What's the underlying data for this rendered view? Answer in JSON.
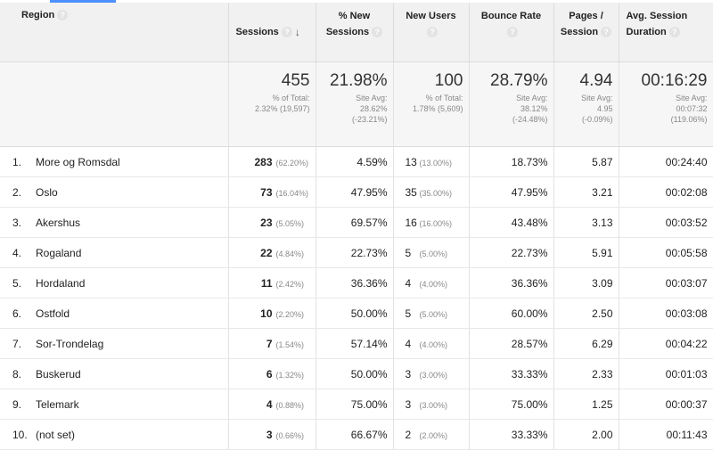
{
  "columns": {
    "region": "Region",
    "sessions": "Sessions",
    "pct_new_sessions": "% New Sessions",
    "new_users": "New Users",
    "bounce_rate": "Bounce Rate",
    "pages_session": "Pages / Session",
    "avg_duration": "Avg. Session Duration"
  },
  "help_symbol": "?",
  "sort_symbol": "↓",
  "totals": {
    "sessions": {
      "value": "455",
      "line1": "% of Total:",
      "line2": "2.32% (19,597)"
    },
    "pct_new_sessions": {
      "value": "21.98%",
      "line1": "Site Avg:",
      "line2": "28.62%",
      "line3": "(-23.21%)"
    },
    "new_users": {
      "value": "100",
      "line1": "% of Total:",
      "line2": "1.78% (5,609)"
    },
    "bounce_rate": {
      "value": "28.79%",
      "line1": "Site Avg:",
      "line2": "38.12%",
      "line3": "(-24.48%)"
    },
    "pages_session": {
      "value": "4.94",
      "line1": "Site Avg:",
      "line2": "4.95",
      "line3": "(-0.09%)"
    },
    "avg_duration": {
      "value": "00:16:29",
      "line1": "Site Avg:",
      "line2": "00:07:32",
      "line3": "(119.06%)"
    }
  },
  "rows": [
    {
      "index": "1.",
      "region": "More og Romsdal",
      "sessions": "283",
      "sessions_pct": "(62.20%)",
      "pct_new": "4.59%",
      "new_users": "13",
      "new_users_pct": "(13.00%)",
      "bounce": "18.73%",
      "pages": "5.87",
      "duration": "00:24:40"
    },
    {
      "index": "2.",
      "region": "Oslo",
      "sessions": "73",
      "sessions_pct": "(16.04%)",
      "pct_new": "47.95%",
      "new_users": "35",
      "new_users_pct": "(35.00%)",
      "bounce": "47.95%",
      "pages": "3.21",
      "duration": "00:02:08"
    },
    {
      "index": "3.",
      "region": "Akershus",
      "sessions": "23",
      "sessions_pct": "(5.05%)",
      "pct_new": "69.57%",
      "new_users": "16",
      "new_users_pct": "(16.00%)",
      "bounce": "43.48%",
      "pages": "3.13",
      "duration": "00:03:52"
    },
    {
      "index": "4.",
      "region": "Rogaland",
      "sessions": "22",
      "sessions_pct": "(4.84%)",
      "pct_new": "22.73%",
      "new_users": "5",
      "new_users_pct": "(5.00%)",
      "bounce": "22.73%",
      "pages": "5.91",
      "duration": "00:05:58"
    },
    {
      "index": "5.",
      "region": "Hordaland",
      "sessions": "11",
      "sessions_pct": "(2.42%)",
      "pct_new": "36.36%",
      "new_users": "4",
      "new_users_pct": "(4.00%)",
      "bounce": "36.36%",
      "pages": "3.09",
      "duration": "00:03:07"
    },
    {
      "index": "6.",
      "region": "Ostfold",
      "sessions": "10",
      "sessions_pct": "(2.20%)",
      "pct_new": "50.00%",
      "new_users": "5",
      "new_users_pct": "(5.00%)",
      "bounce": "60.00%",
      "pages": "2.50",
      "duration": "00:03:08"
    },
    {
      "index": "7.",
      "region": "Sor-Trondelag",
      "sessions": "7",
      "sessions_pct": "(1.54%)",
      "pct_new": "57.14%",
      "new_users": "4",
      "new_users_pct": "(4.00%)",
      "bounce": "28.57%",
      "pages": "6.29",
      "duration": "00:04:22"
    },
    {
      "index": "8.",
      "region": "Buskerud",
      "sessions": "6",
      "sessions_pct": "(1.32%)",
      "pct_new": "50.00%",
      "new_users": "3",
      "new_users_pct": "(3.00%)",
      "bounce": "33.33%",
      "pages": "2.33",
      "duration": "00:01:03"
    },
    {
      "index": "9.",
      "region": "Telemark",
      "sessions": "4",
      "sessions_pct": "(0.88%)",
      "pct_new": "75.00%",
      "new_users": "3",
      "new_users_pct": "(3.00%)",
      "bounce": "75.00%",
      "pages": "1.25",
      "duration": "00:00:37"
    },
    {
      "index": "10.",
      "region": "(not set)",
      "sessions": "3",
      "sessions_pct": "(0.66%)",
      "pct_new": "66.67%",
      "new_users": "2",
      "new_users_pct": "(2.00%)",
      "bounce": "33.33%",
      "pages": "2.00",
      "duration": "00:11:43"
    }
  ],
  "colors": {
    "header_bg": "#f1f1f1",
    "totals_bg": "#f6f6f6",
    "accent_tab": "#4d90fe",
    "muted_text": "#888888"
  }
}
